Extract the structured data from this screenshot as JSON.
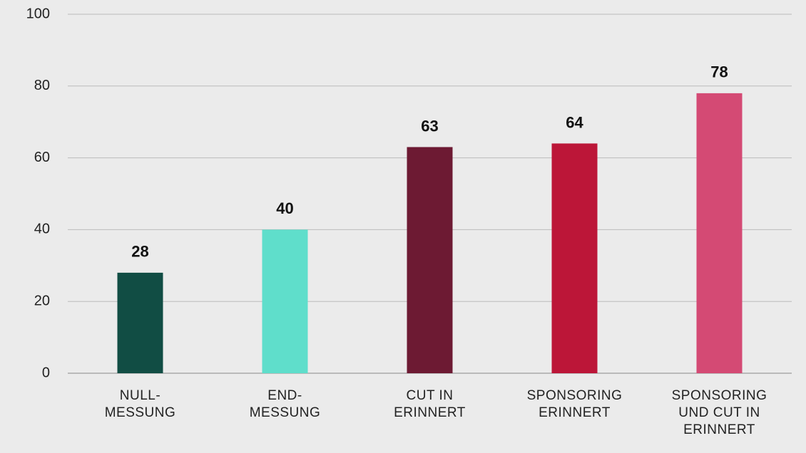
{
  "chart_data": {
    "type": "bar",
    "categories": [
      "NULL-MESSUNG",
      "END-MESSUNG",
      "CUT IN ERINNERT",
      "SPONSORING ERINNERT",
      "SPONSORING UND CUT IN ERINNERT"
    ],
    "values": [
      28,
      40,
      63,
      64,
      78
    ],
    "colors": [
      "#114d44",
      "#5fdecb",
      "#6d1a33",
      "#bc1638",
      "#d44a74"
    ],
    "ylim": [
      0,
      100
    ],
    "yticks": [
      0,
      20,
      40,
      60,
      80,
      100
    ],
    "grid": true
  }
}
